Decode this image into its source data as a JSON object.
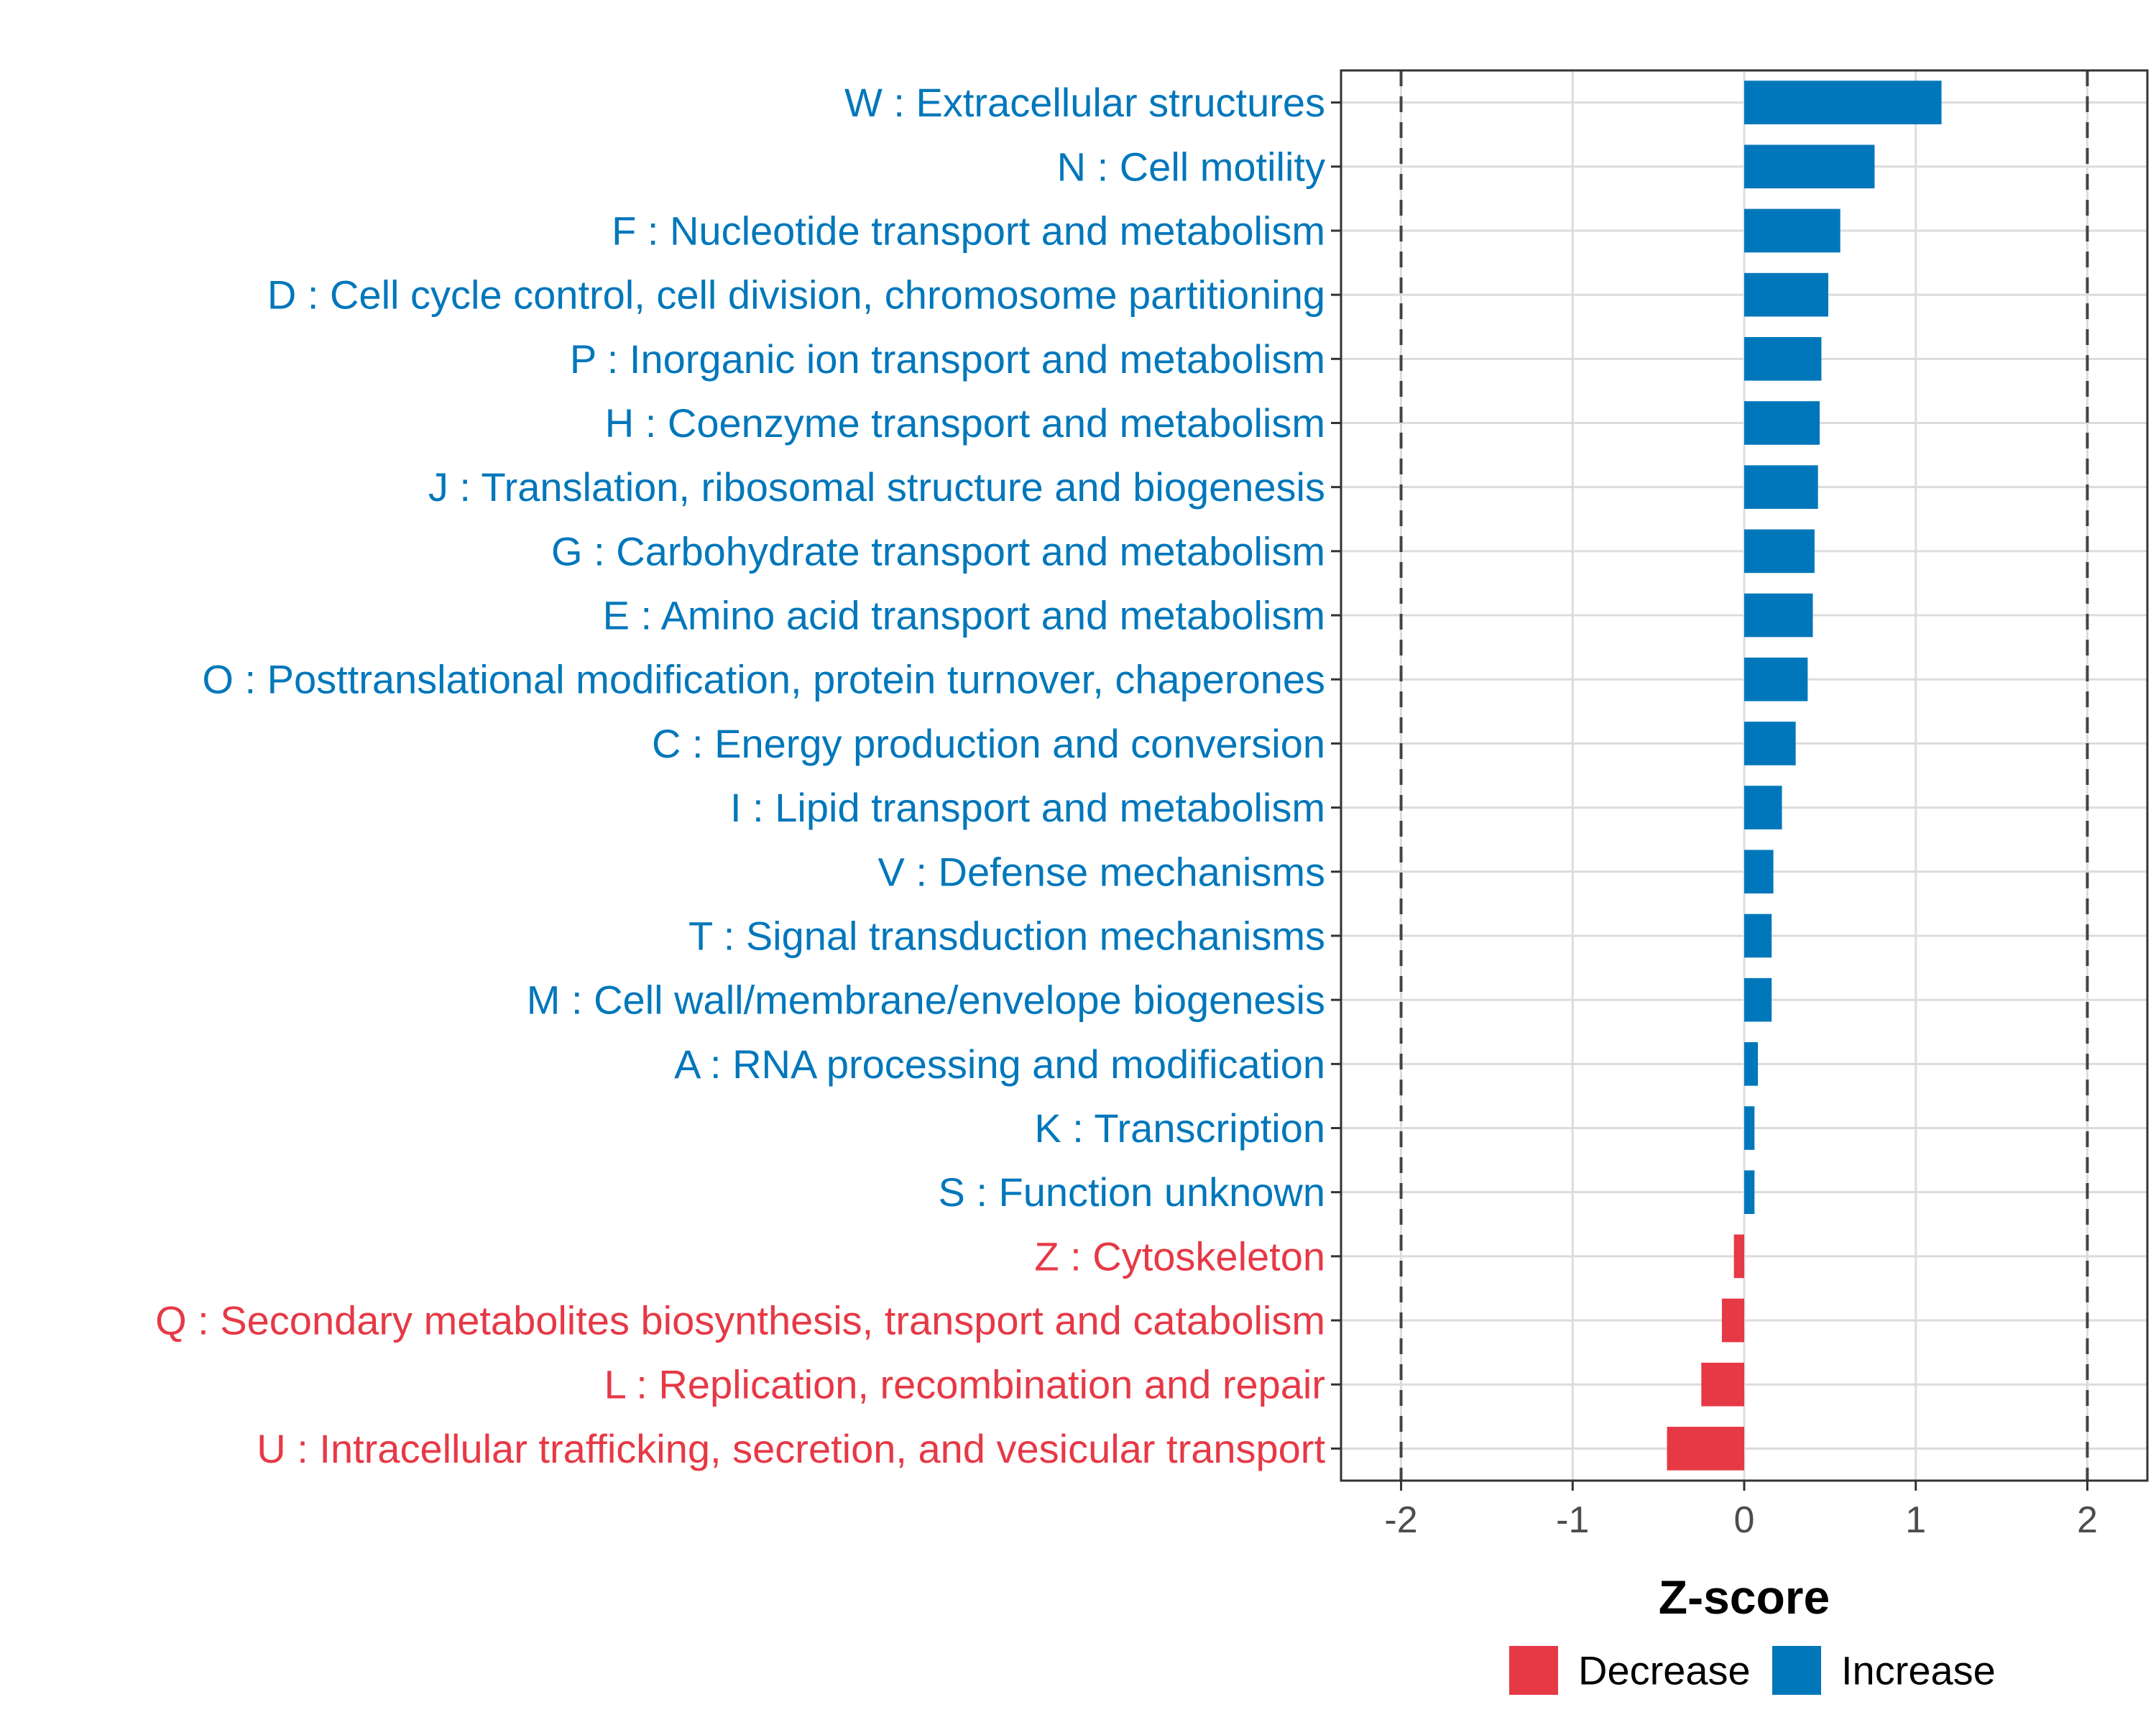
{
  "colors": {
    "increase": "#0077bb",
    "decrease": "#e63946"
  },
  "legend": [
    {
      "label": "Decrease",
      "key": "decrease"
    },
    {
      "label": "Increase",
      "key": "increase"
    }
  ],
  "chart_data": {
    "type": "bar",
    "orientation": "horizontal",
    "xlabel": "Z-score",
    "ylabel": "",
    "xlim": [
      -2.35,
      2.35
    ],
    "xticks": [
      -2,
      -1,
      0,
      1,
      2
    ],
    "xtick_labels": [
      "-2",
      "-1",
      "0",
      "1",
      "2"
    ],
    "reference_lines": [
      -2,
      2
    ],
    "grid": true,
    "legend_position": "bottom",
    "categories": [
      "W : Extracellular structures",
      "N : Cell motility",
      "F : Nucleotide transport and metabolism",
      "D : Cell cycle control, cell division, chromosome partitioning",
      "P : Inorganic ion transport and metabolism",
      "H : Coenzyme transport and metabolism",
      "J : Translation, ribosomal structure and biogenesis",
      "G : Carbohydrate transport and metabolism",
      "E : Amino acid transport and metabolism",
      "O : Posttranslational modification, protein turnover, chaperones",
      "C : Energy production and conversion",
      "I : Lipid transport and metabolism",
      "V : Defense mechanisms",
      "T : Signal transduction mechanisms",
      "M : Cell wall/membrane/envelope biogenesis",
      "A : RNA processing and modification",
      "K : Transcription",
      "S : Function unknown",
      "Z : Cytoskeleton",
      "Q : Secondary metabolites biosynthesis, transport and catabolism",
      "L : Replication, recombination and repair",
      "U : Intracellular trafficking, secretion, and vesicular transport"
    ],
    "values": [
      1.15,
      0.76,
      0.56,
      0.49,
      0.45,
      0.44,
      0.43,
      0.41,
      0.4,
      0.37,
      0.3,
      0.22,
      0.17,
      0.16,
      0.16,
      0.08,
      0.06,
      0.06,
      -0.06,
      -0.13,
      -0.25,
      -0.45
    ],
    "direction": [
      "Increase",
      "Increase",
      "Increase",
      "Increase",
      "Increase",
      "Increase",
      "Increase",
      "Increase",
      "Increase",
      "Increase",
      "Increase",
      "Increase",
      "Increase",
      "Increase",
      "Increase",
      "Increase",
      "Increase",
      "Increase",
      "Decrease",
      "Decrease",
      "Decrease",
      "Decrease"
    ]
  }
}
